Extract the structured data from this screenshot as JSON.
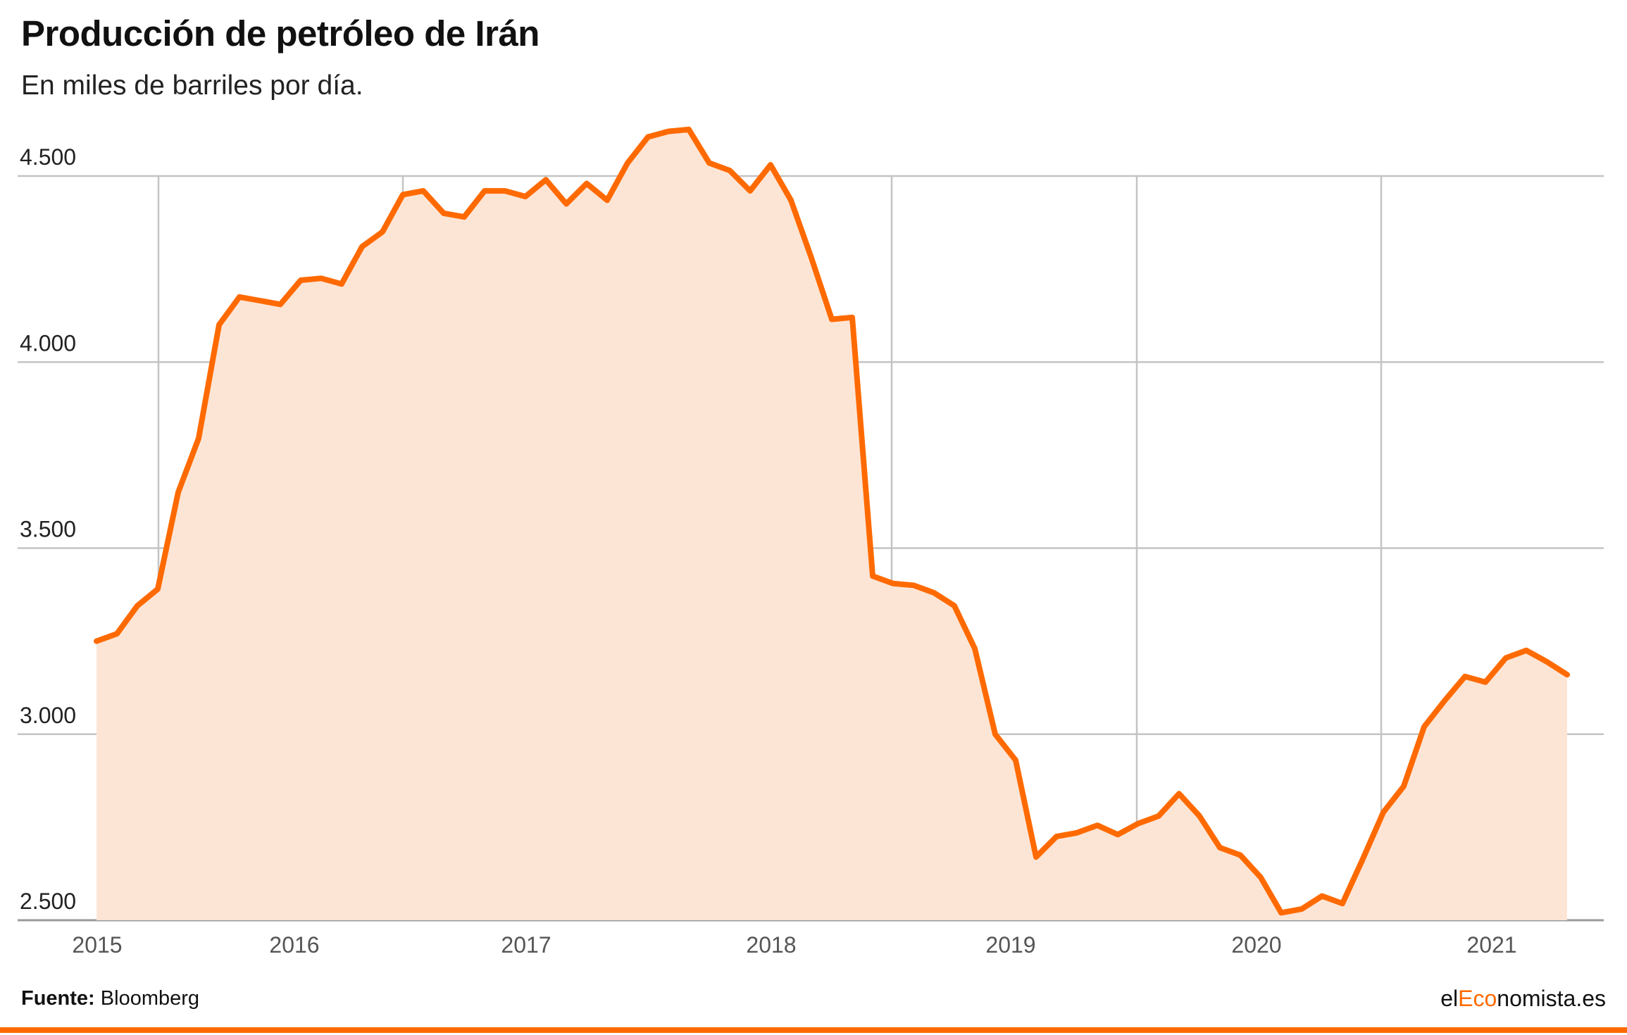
{
  "header": {
    "title": "Producción de petróleo de Irán",
    "subtitle": "En miles de barriles por día."
  },
  "footer": {
    "source_label": "Fuente:",
    "source_value": "Bloomberg",
    "brand_prefix": "el",
    "brand_accent": "Eco",
    "brand_suffix": "nomista.es"
  },
  "colors": {
    "line": "#ff6a00",
    "area": "#fde5d6",
    "grid": "#c4c4c4",
    "accent": "#ff6a00"
  },
  "chart_data": {
    "type": "area",
    "title": "Producción de petróleo de Irán",
    "subtitle": "En miles de barriles por día.",
    "xlabel": "",
    "ylabel": "",
    "ylim": [
      2500,
      4500
    ],
    "y_ticks": [
      {
        "value": 4500,
        "label": "4.500"
      },
      {
        "value": 4000,
        "label": "4.000"
      },
      {
        "value": 3500,
        "label": "3.500"
      },
      {
        "value": 3000,
        "label": "3.000"
      },
      {
        "value": 2500,
        "label": "2.500"
      }
    ],
    "x_ticks": [
      "2015",
      "2016",
      "2017",
      "2018",
      "2019",
      "2020",
      "2021"
    ],
    "grid": true,
    "series": [
      {
        "values": [
          3250,
          3270,
          3345,
          3390,
          3650,
          3795,
          4100,
          4175,
          4165,
          4155,
          4220,
          4225,
          4210,
          4310,
          4350,
          4450,
          4460,
          4400,
          4390,
          4460,
          4460,
          4445,
          4490,
          4425,
          4480,
          4435,
          4535,
          4605,
          4620,
          4625,
          4535,
          4515,
          4460,
          4530,
          4435,
          4280,
          4115,
          4120,
          3425,
          3405,
          3400,
          3380,
          3345,
          3230,
          3000,
          2930,
          2670,
          2725,
          2735,
          2755,
          2730,
          2760,
          2780,
          2840,
          2780,
          2695,
          2675,
          2615,
          2520,
          2530,
          2565,
          2545,
          2665,
          2790,
          2860,
          3020,
          3090,
          3155,
          3140,
          3205,
          3225,
          3195,
          3160
        ]
      }
    ]
  }
}
